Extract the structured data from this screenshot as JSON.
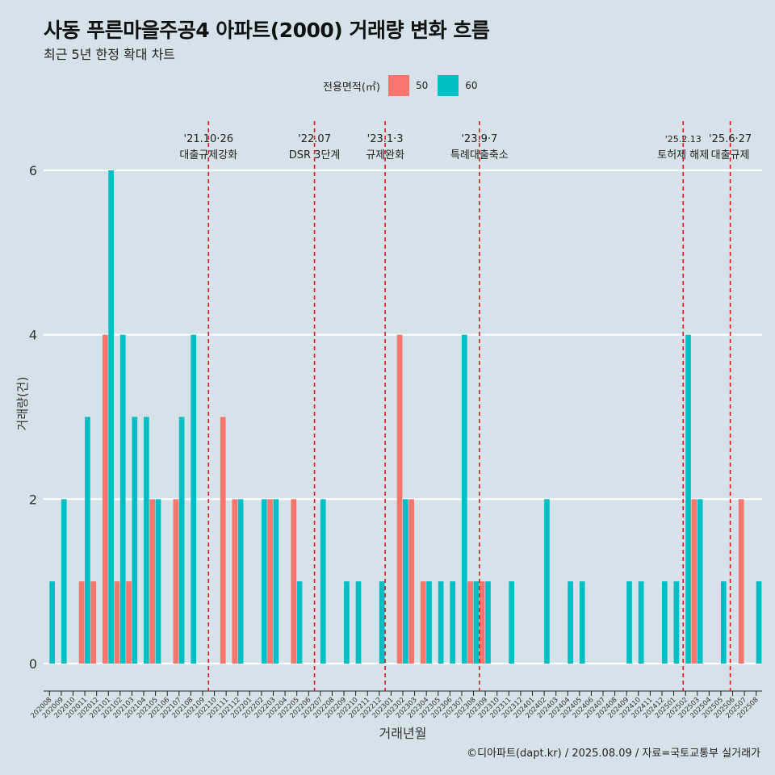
{
  "title": "사동 푸른마을주공4 아파트(2000) 거래량 변화 흐름",
  "subtitle": "최근 5년 한정 확대 차트",
  "caption": "©디아파트(dapt.kr) / 2025.08.09 / 자료=국토교통부 실거래가",
  "legend": {
    "title": "전용면적(㎡)",
    "items": [
      {
        "label": "50",
        "color": "#f8766d"
      },
      {
        "label": "60",
        "color": "#00bfc4"
      }
    ]
  },
  "chart_data": {
    "type": "bar",
    "xlabel": "거래년월",
    "ylabel": "거래량(건)",
    "ylim": [
      0,
      6
    ],
    "yticks": [
      0,
      2,
      4,
      6
    ],
    "categories": [
      "202008",
      "202009",
      "202010",
      "202011",
      "202012",
      "202101",
      "202102",
      "202103",
      "202104",
      "202105",
      "202106",
      "202107",
      "202108",
      "202109",
      "202110",
      "202111",
      "202112",
      "202201",
      "202202",
      "202203",
      "202204",
      "202205",
      "202206",
      "202207",
      "202208",
      "202209",
      "202210",
      "202211",
      "202212",
      "202301",
      "202302",
      "202303",
      "202304",
      "202305",
      "202306",
      "202307",
      "202308",
      "202309",
      "202310",
      "202311",
      "202312",
      "202401",
      "202402",
      "202403",
      "202404",
      "202405",
      "202406",
      "202407",
      "202408",
      "202409",
      "202410",
      "202411",
      "202412",
      "202501",
      "202502",
      "202503",
      "202504",
      "202505",
      "202506",
      "202507",
      "202508"
    ],
    "series": [
      {
        "name": "50",
        "color": "#f8766d",
        "values": [
          0,
          0,
          0,
          1,
          1,
          4,
          1,
          1,
          0,
          2,
          0,
          2,
          0,
          0,
          0,
          3,
          2,
          0,
          0,
          2,
          0,
          2,
          0,
          0,
          0,
          0,
          0,
          0,
          0,
          0,
          4,
          2,
          1,
          0,
          0,
          0,
          1,
          1,
          0,
          0,
          0,
          0,
          0,
          0,
          0,
          0,
          0,
          0,
          0,
          0,
          0,
          0,
          0,
          0,
          0,
          2,
          0,
          0,
          0,
          2,
          0
        ]
      },
      {
        "name": "60",
        "color": "#00bfc4",
        "values": [
          1,
          2,
          0,
          3,
          0,
          6,
          4,
          3,
          3,
          2,
          0,
          3,
          4,
          0,
          0,
          0,
          2,
          0,
          2,
          2,
          0,
          1,
          0,
          2,
          0,
          1,
          1,
          0,
          1,
          0,
          2,
          0,
          1,
          1,
          1,
          4,
          1,
          1,
          0,
          1,
          0,
          0,
          2,
          0,
          1,
          1,
          0,
          0,
          0,
          1,
          1,
          0,
          1,
          1,
          4,
          2,
          0,
          1,
          0,
          0,
          1
        ]
      }
    ],
    "events": [
      {
        "date": "'21.10·26",
        "label": "대출규제강화",
        "index": 14
      },
      {
        "date": "'22.07",
        "label": "DSR 3단계",
        "index": 23
      },
      {
        "date": "'23.1·3",
        "label": "규제완화",
        "index": 29
      },
      {
        "date": "'23.9·7",
        "label": "특례대출축소",
        "index": 37
      },
      {
        "date": "'25.2.13",
        "label": "토허제 해제",
        "index": 54.3
      },
      {
        "date": "'25.6·27",
        "label": "대출규제",
        "index": 58.3
      }
    ],
    "grid": true
  }
}
